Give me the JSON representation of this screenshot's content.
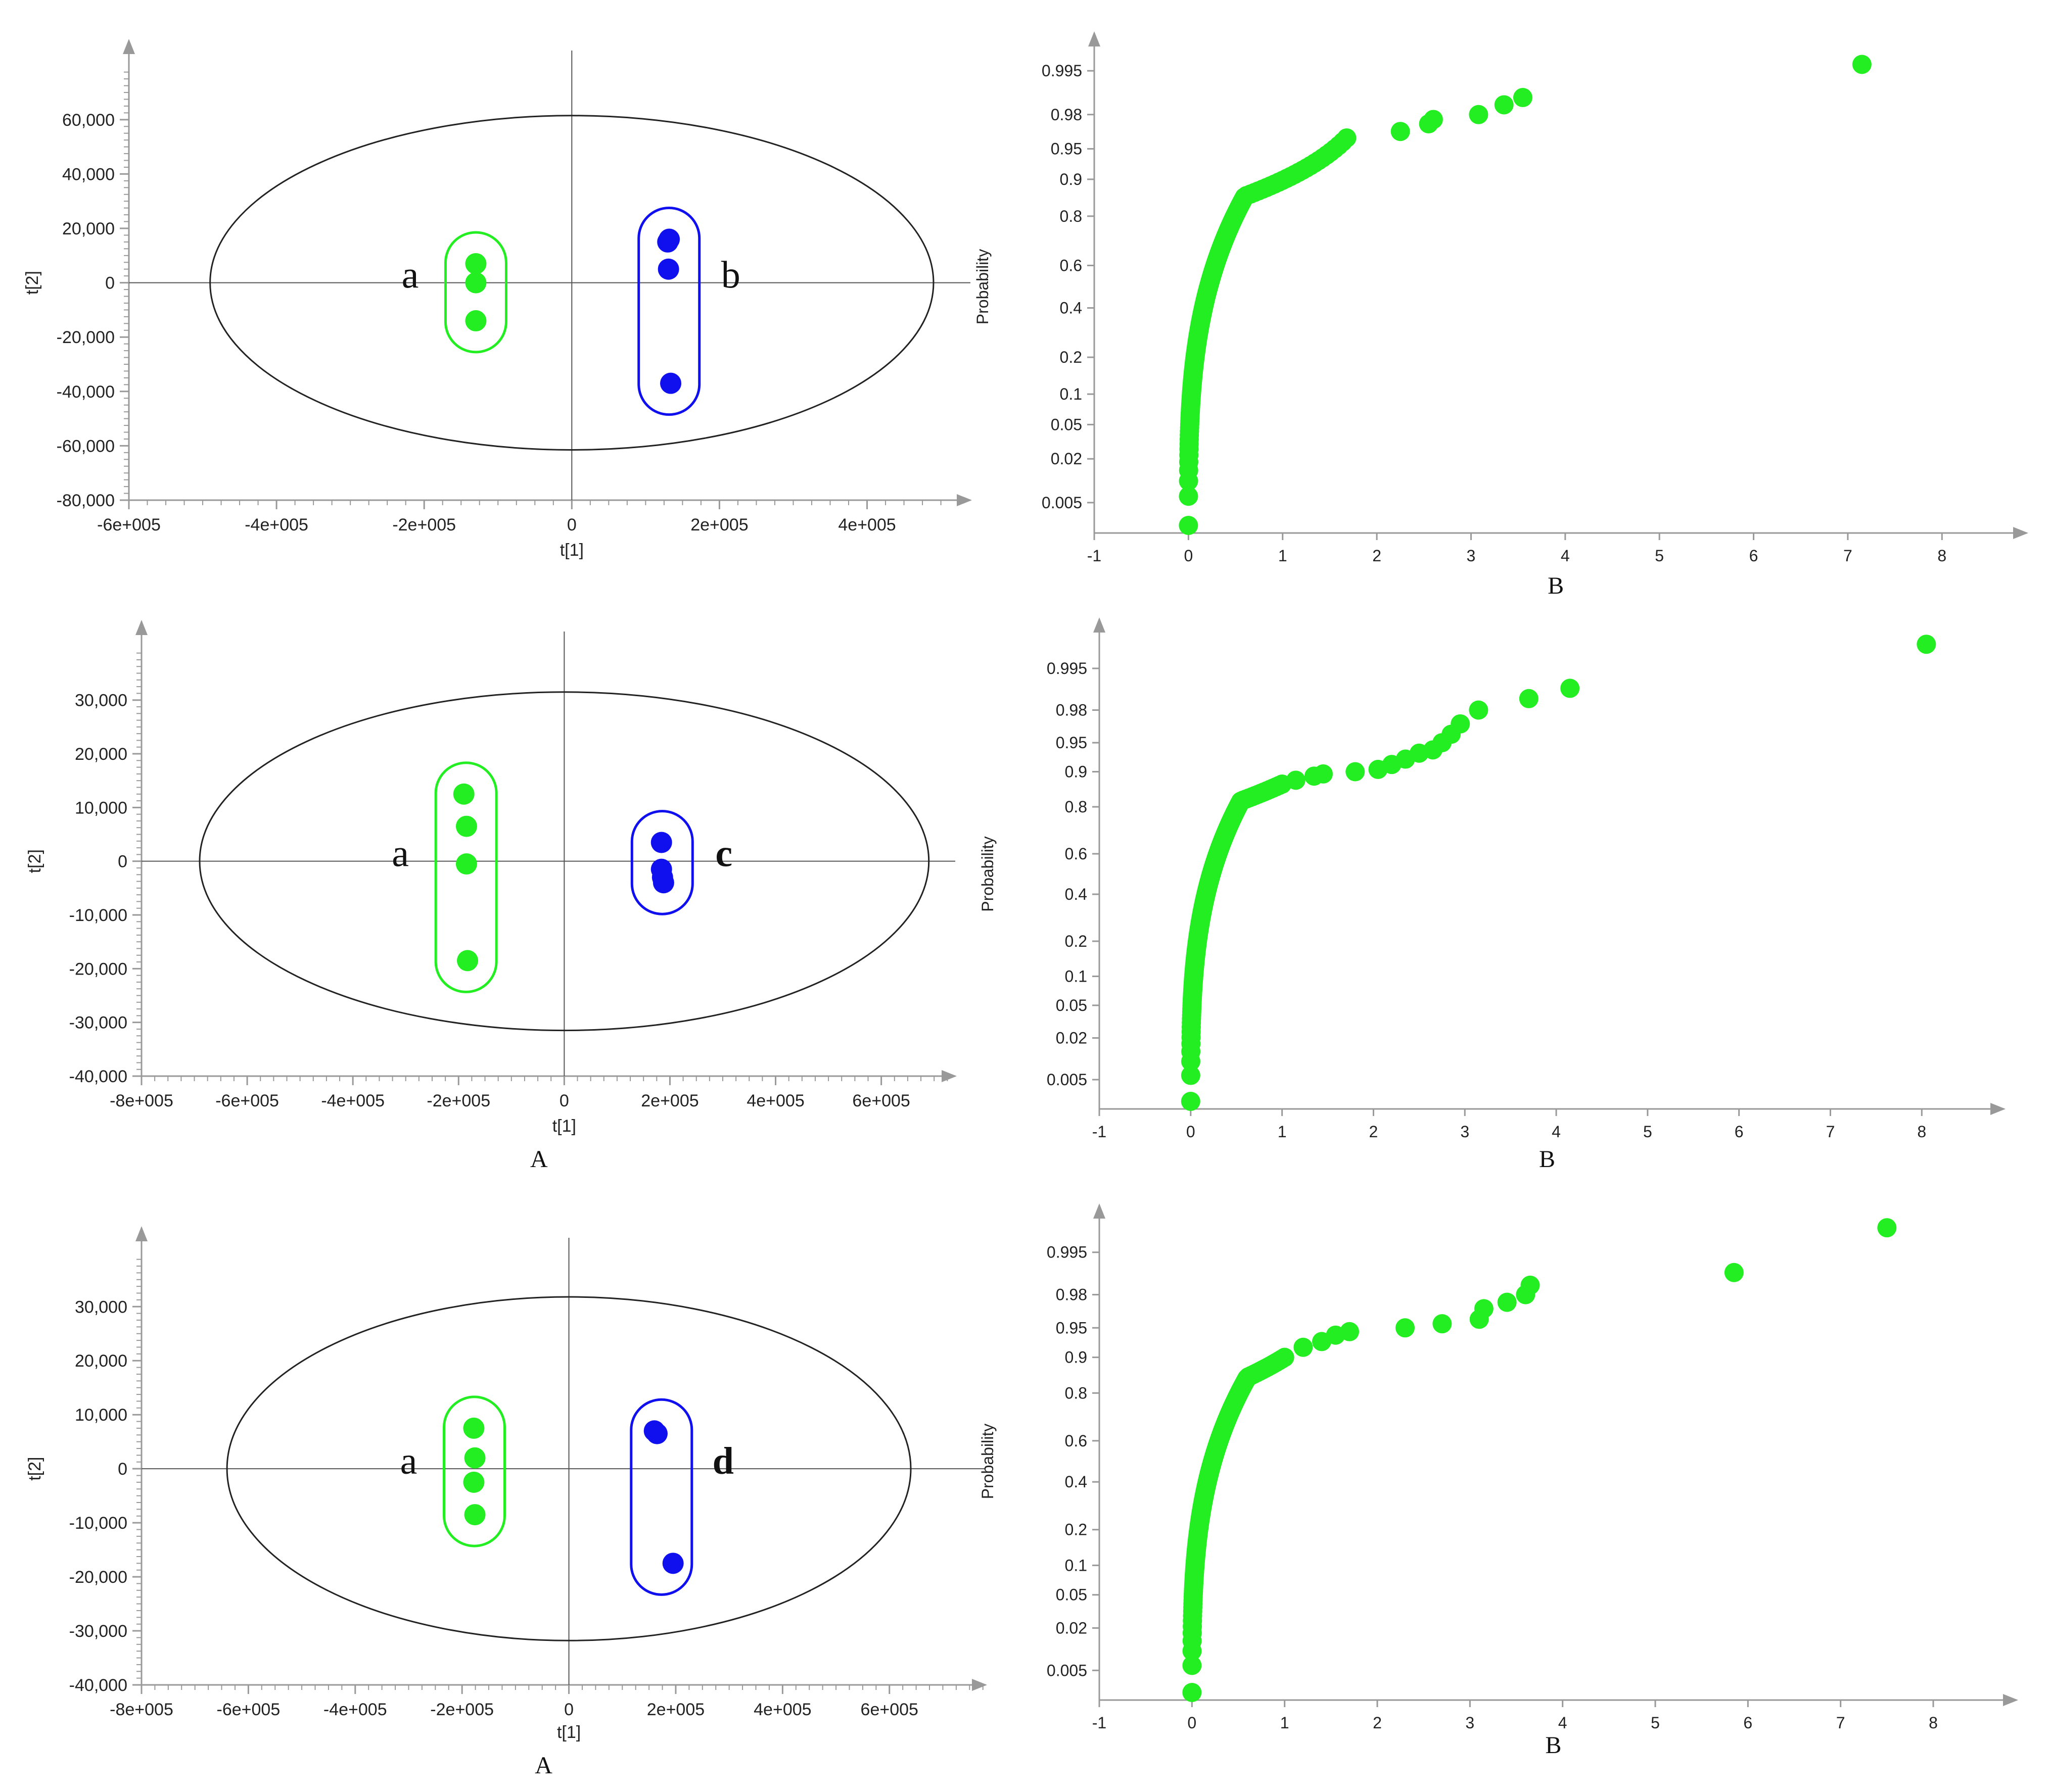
{
  "figure": {
    "score_panel_label": "A",
    "qq_panel_label": "B"
  },
  "colors": {
    "group_a": "#22ee22",
    "group_other": "#1010ee",
    "axis": "#999999",
    "text": "#222222",
    "ellipse": "#222222"
  },
  "chart_data": [
    {
      "type": "scatter",
      "id": "score-plot-1",
      "xlabel": "t[1]",
      "ylabel": "t[2]",
      "xlim": [
        -600000,
        540000
      ],
      "ylim": [
        -80000,
        78000
      ],
      "xticks": [
        -600000,
        -400000,
        -200000,
        0,
        200000,
        400000
      ],
      "xtick_labels": [
        "-6e+005",
        "-4e+005",
        "-2e+005",
        "0",
        "2e+005",
        "4e+005"
      ],
      "yticks": [
        -80000,
        -60000,
        -40000,
        -20000,
        0,
        20000,
        40000,
        60000
      ],
      "ytick_labels": [
        "-80,000",
        "-60,000",
        "-40,000",
        "-20,000",
        "0",
        "20,000",
        "40,000",
        "60,000"
      ],
      "ellipse": {
        "rx": 490000,
        "ry": 61500
      },
      "panel_label": "",
      "groups": [
        {
          "name": "a",
          "points": [
            [
              -130000,
              7000
            ],
            [
              -130000,
              0
            ],
            [
              -130000,
              -14000
            ]
          ]
        },
        {
          "name": "b",
          "points": [
            [
              132000,
              16000
            ],
            [
              130000,
              15000
            ],
            [
              131000,
              5000
            ],
            [
              134000,
              -37000
            ]
          ]
        }
      ]
    },
    {
      "type": "scatter",
      "id": "score-plot-2",
      "xlabel": "t[1]",
      "ylabel": "t[2]",
      "xlim": [
        -800000,
        740000
      ],
      "ylim": [
        -40000,
        39000
      ],
      "xticks": [
        -800000,
        -600000,
        -400000,
        -200000,
        0,
        200000,
        400000,
        600000
      ],
      "xtick_labels": [
        "-8e+005",
        "-6e+005",
        "-4e+005",
        "-2e+005",
        "0",
        "2e+005",
        "4e+005",
        "6e+005"
      ],
      "yticks": [
        -40000,
        -30000,
        -20000,
        -10000,
        0,
        10000,
        20000,
        30000
      ],
      "ytick_labels": [
        "-40,000",
        "-30,000",
        "-20,000",
        "-10,000",
        "0",
        "10,000",
        "20,000",
        "30,000"
      ],
      "ellipse": {
        "rx": 690000,
        "ry": 31500
      },
      "panel_label": "A",
      "groups": [
        {
          "name": "a",
          "points": [
            [
              -190000,
              12500
            ],
            [
              -185000,
              6500
            ],
            [
              -185000,
              -500
            ],
            [
              -183000,
              -18500
            ]
          ]
        },
        {
          "name": "c",
          "points": [
            [
              184000,
              3500
            ],
            [
              184000,
              -1500
            ],
            [
              186000,
              -3000
            ],
            [
              188000,
              -4000
            ]
          ]
        }
      ]
    },
    {
      "type": "scatter",
      "id": "score-plot-3",
      "xlabel": "t[1]",
      "ylabel": "t[2]",
      "xlim": [
        -800000,
        780000
      ],
      "ylim": [
        -40000,
        39000
      ],
      "xticks": [
        -800000,
        -600000,
        -400000,
        -200000,
        0,
        200000,
        400000,
        600000
      ],
      "xtick_labels": [
        "-8e+005",
        "-6e+005",
        "-4e+005",
        "-2e+005",
        "0",
        "2e+005",
        "4e+005",
        "6e+005"
      ],
      "yticks": [
        -40000,
        -30000,
        -20000,
        -10000,
        0,
        10000,
        20000,
        30000
      ],
      "ytick_labels": [
        "-40,000",
        "-30,000",
        "-20,000",
        "-10,000",
        "0",
        "10,000",
        "20,000",
        "30,000"
      ],
      "ellipse": {
        "rx": 640000,
        "ry": 31800
      },
      "panel_label": "A",
      "groups": [
        {
          "name": "a",
          "points": [
            [
              -178000,
              7500
            ],
            [
              -176000,
              2000
            ],
            [
              -178000,
              -2500
            ],
            [
              -176000,
              -8500
            ]
          ]
        },
        {
          "name": "d",
          "points": [
            [
              165000,
              6500
            ],
            [
              160000,
              7000
            ],
            [
              195000,
              -17500
            ]
          ]
        }
      ]
    },
    {
      "type": "scatter",
      "id": "normal-prob-plot-1",
      "xlabel": "B",
      "ylabel": "Probability",
      "xlim": [
        -1,
        8.9
      ],
      "xticks": [
        -1,
        0,
        1,
        2,
        3,
        4,
        5,
        6,
        7,
        8
      ],
      "yticks": [
        0.005,
        0.02,
        0.05,
        0.1,
        0.2,
        0.4,
        0.6,
        0.8,
        0.9,
        0.95,
        0.98,
        0.995
      ],
      "ytick_labels": [
        "0.005",
        "0.02",
        "0.05",
        "0.1",
        "0.2",
        "0.4",
        "0.6",
        "0.8",
        "0.9",
        "0.95",
        "0.98",
        "0.995"
      ],
      "panel_label": "",
      "curve": {
        "n": 240,
        "knee": 0.6,
        "knee_prob": 0.86,
        "end": 1.68,
        "end_prob": 0.962
      },
      "tail_points": [
        [
          2.25,
          0.968
        ],
        [
          2.55,
          0.974
        ],
        [
          2.6,
          0.977
        ],
        [
          3.08,
          0.98
        ],
        [
          3.35,
          0.985
        ],
        [
          3.55,
          0.988
        ],
        [
          7.15,
          0.996
        ]
      ]
    },
    {
      "type": "scatter",
      "id": "normal-prob-plot-2",
      "xlabel": "B",
      "ylabel": "Probability",
      "xlim": [
        -1,
        8.9
      ],
      "xticks": [
        -1,
        0,
        1,
        2,
        3,
        4,
        5,
        6,
        7,
        8
      ],
      "yticks": [
        0.005,
        0.02,
        0.05,
        0.1,
        0.2,
        0.4,
        0.6,
        0.8,
        0.9,
        0.95,
        0.98,
        0.995
      ],
      "ytick_labels": [
        "0.005",
        "0.02",
        "0.05",
        "0.1",
        "0.2",
        "0.4",
        "0.6",
        "0.8",
        "0.9",
        "0.95",
        "0.98",
        "0.995"
      ],
      "panel_label": "B",
      "curve": {
        "n": 240,
        "knee": 0.55,
        "knee_prob": 0.82,
        "end": 1.0,
        "end_prob": 0.87
      },
      "tail_points": [
        [
          1.15,
          0.88
        ],
        [
          1.35,
          0.89
        ],
        [
          1.45,
          0.895
        ],
        [
          1.8,
          0.9
        ],
        [
          2.05,
          0.905
        ],
        [
          2.2,
          0.915
        ],
        [
          2.35,
          0.925
        ],
        [
          2.5,
          0.935
        ],
        [
          2.65,
          0.94
        ],
        [
          2.75,
          0.95
        ],
        [
          2.85,
          0.96
        ],
        [
          2.95,
          0.97
        ],
        [
          3.15,
          0.98
        ],
        [
          3.7,
          0.986
        ],
        [
          4.15,
          0.99
        ],
        [
          8.05,
          0.998
        ]
      ]
    },
    {
      "type": "scatter",
      "id": "normal-prob-plot-3",
      "xlabel": "B",
      "ylabel": "Probability",
      "xlim": [
        -1,
        8.9
      ],
      "xticks": [
        -1,
        0,
        1,
        2,
        3,
        4,
        5,
        6,
        7,
        8
      ],
      "yticks": [
        0.005,
        0.02,
        0.05,
        0.1,
        0.2,
        0.4,
        0.6,
        0.8,
        0.9,
        0.95,
        0.98,
        0.995
      ],
      "ytick_labels": [
        "0.005",
        "0.02",
        "0.05",
        "0.1",
        "0.2",
        "0.4",
        "0.6",
        "0.8",
        "0.9",
        "0.95",
        "0.98",
        "0.995"
      ],
      "panel_label": "B",
      "curve": {
        "n": 240,
        "knee": 0.6,
        "knee_prob": 0.85,
        "end": 1.0,
        "end_prob": 0.9
      },
      "tail_points": [
        [
          1.2,
          0.92
        ],
        [
          1.4,
          0.93
        ],
        [
          1.55,
          0.94
        ],
        [
          1.7,
          0.945
        ],
        [
          2.3,
          0.95
        ],
        [
          2.7,
          0.955
        ],
        [
          3.1,
          0.96
        ],
        [
          3.15,
          0.97
        ],
        [
          3.4,
          0.975
        ],
        [
          3.6,
          0.98
        ],
        [
          3.65,
          0.985
        ],
        [
          5.85,
          0.99
        ],
        [
          7.5,
          0.998
        ]
      ]
    }
  ]
}
